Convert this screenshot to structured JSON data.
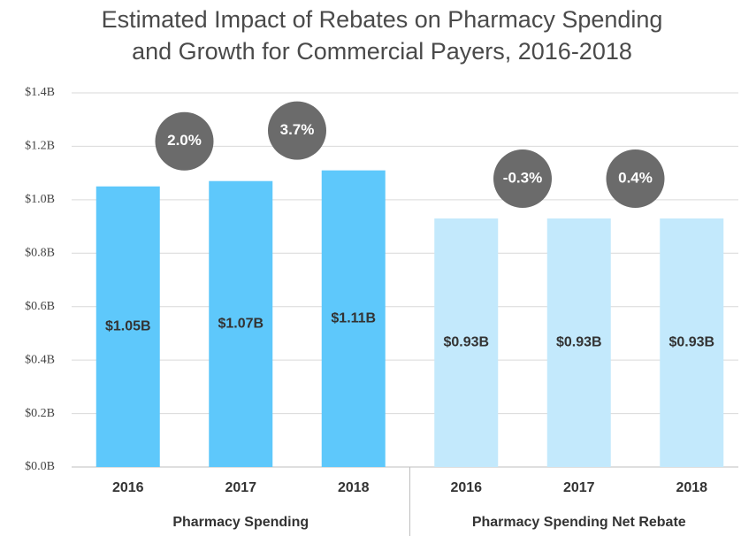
{
  "chart_data": {
    "type": "bar",
    "title": [
      "Estimated Impact of Rebates on Pharmacy Spending",
      "and Growth for Commercial Payers, 2016-2018"
    ],
    "groups": [
      {
        "name": "Pharmacy Spending",
        "color": "#5ec8fb",
        "categories": [
          "2016",
          "2017",
          "2018"
        ],
        "values": [
          1.05,
          1.07,
          1.11
        ],
        "value_labels": [
          "$1.05B",
          "$1.07B",
          "$1.11B"
        ]
      },
      {
        "name": "Pharmacy Spending Net Rebate",
        "color": "#c3e9fc",
        "categories": [
          "2016",
          "2017",
          "2018"
        ],
        "values": [
          0.93,
          0.93,
          0.93
        ],
        "value_labels": [
          "$0.93B",
          "$0.93B",
          "$0.93B"
        ]
      }
    ],
    "annotations": [
      "2.0%",
      "3.7%",
      "-0.3%",
      "0.4%"
    ],
    "ylim": [
      0,
      1.4
    ],
    "yticks": [
      {
        "value": 0,
        "label": "$0.0B"
      },
      {
        "value": 0.2,
        "label": "$0.2B"
      },
      {
        "value": 0.4,
        "label": "$0.4B"
      },
      {
        "value": 0.6,
        "label": "$0.6B"
      },
      {
        "value": 0.8,
        "label": "$0.8B"
      },
      {
        "value": 1.0,
        "label": "$1.0B"
      },
      {
        "value": 1.2,
        "label": "$1.2B"
      },
      {
        "value": 1.4,
        "label": "$1.4B"
      }
    ],
    "grid": true
  }
}
